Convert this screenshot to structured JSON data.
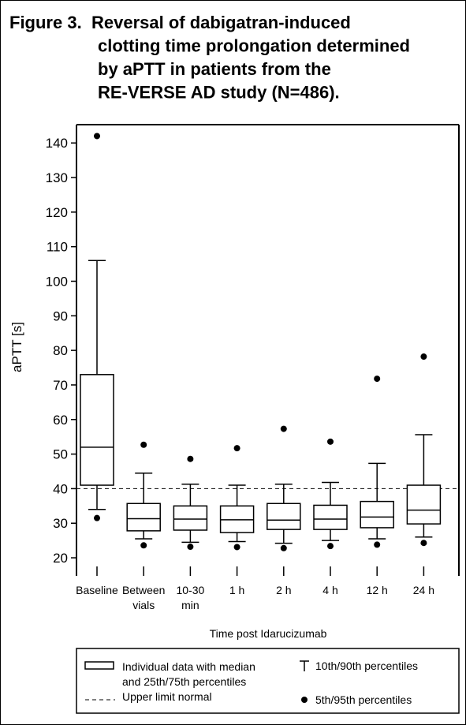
{
  "chart_data": {
    "type": "box",
    "figure_label": "Figure 3.",
    "title": [
      "Reversal of dabigatran-induced",
      "clotting time prolongation determined",
      "by aPTT in patients from the",
      "RE-VERSE AD study (N=486)."
    ],
    "y_label": "aPTT [s]",
    "x_label": "Time post Idarucizumab",
    "categories": [
      "Baseline",
      "Between\nvials",
      "10-30\nmin",
      "1 h",
      "2 h",
      "4 h",
      "12 h",
      "24 h"
    ],
    "p5": [
      31.5,
      23.6,
      23.2,
      23.1,
      22.8,
      23.4,
      23.8,
      24.3
    ],
    "whisker_low": [
      34,
      25.5,
      24.5,
      24.7,
      24.2,
      25,
      25.5,
      26
    ],
    "q1": [
      41,
      27.8,
      28,
      27.3,
      28.2,
      28.2,
      28.7,
      29.8
    ],
    "median": [
      52,
      31.3,
      31.2,
      31,
      30.9,
      31.2,
      31.8,
      33.8
    ],
    "q3": [
      73,
      35.7,
      35,
      35,
      35.7,
      35.2,
      36.3,
      41
    ],
    "whisker_high": [
      106,
      44.5,
      41.3,
      41,
      41.3,
      41.8,
      47.3,
      55.6
    ],
    "p95": [
      142,
      52.7,
      48.6,
      51.7,
      57.3,
      53.6,
      71.8,
      78.2
    ],
    "reference_line": {
      "value": 40,
      "label": "Upper limit normal"
    },
    "legend": {
      "box": "Individual data with median\nand 25th/75th percentiles",
      "whisker": "10th/90th percentiles",
      "dot": "5th/95th percentiles"
    },
    "ylim": [
      17.5,
      145.3
    ],
    "yticks": [
      20,
      30,
      40,
      50,
      60,
      70,
      80,
      90,
      100,
      110,
      120,
      130,
      140
    ]
  }
}
